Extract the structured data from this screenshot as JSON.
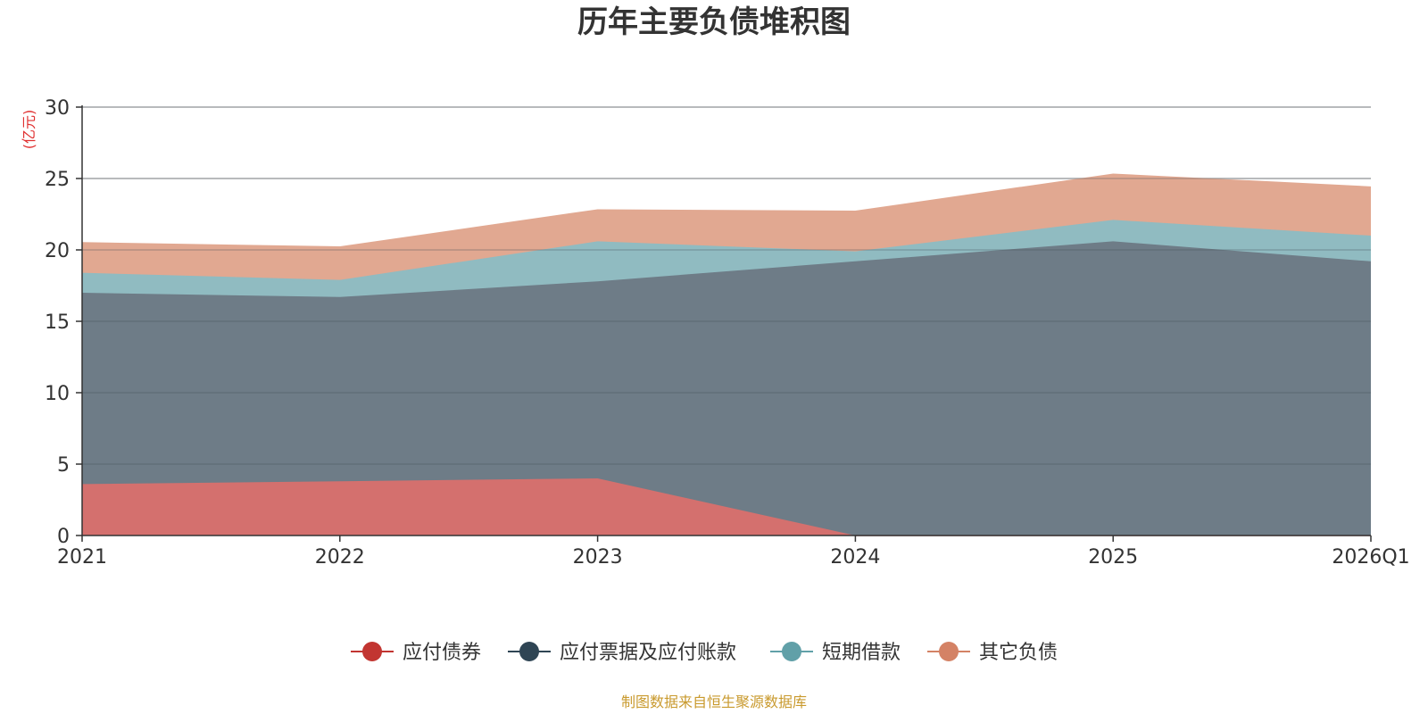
{
  "chart_data": {
    "type": "area",
    "stacked": true,
    "title": "历年主要负债堆积图",
    "ylabel": "(亿元)",
    "xlabel": "",
    "categories": [
      "2021",
      "2022",
      "2023",
      "2024",
      "2025",
      "2026Q1"
    ],
    "ylim": [
      0,
      30
    ],
    "yticks": [
      0,
      5,
      10,
      15,
      20,
      25,
      30
    ],
    "grid": true,
    "legend_position": "bottom",
    "series": [
      {
        "name": "应付债券",
        "color": "#c23531",
        "fill": "#d4706e",
        "values": [
          3.6,
          3.8,
          4.0,
          0.0,
          0.0,
          0.0
        ]
      },
      {
        "name": "应付票据及应付账款",
        "color": "#2f4554",
        "fill": "#6e7c87",
        "values": [
          13.4,
          12.9,
          13.8,
          19.2,
          20.6,
          19.2
        ]
      },
      {
        "name": "短期借款",
        "color": "#61a0a8",
        "fill": "#90bbc1",
        "values": [
          1.4,
          1.2,
          2.8,
          0.7,
          1.5,
          1.8
        ]
      },
      {
        "name": "其它负债",
        "color": "#d48265",
        "fill": "#e1a891",
        "values": [
          2.1,
          2.3,
          2.2,
          2.8,
          3.2,
          3.4
        ]
      }
    ],
    "source_note": "制图数据来自恒生聚源数据库"
  }
}
